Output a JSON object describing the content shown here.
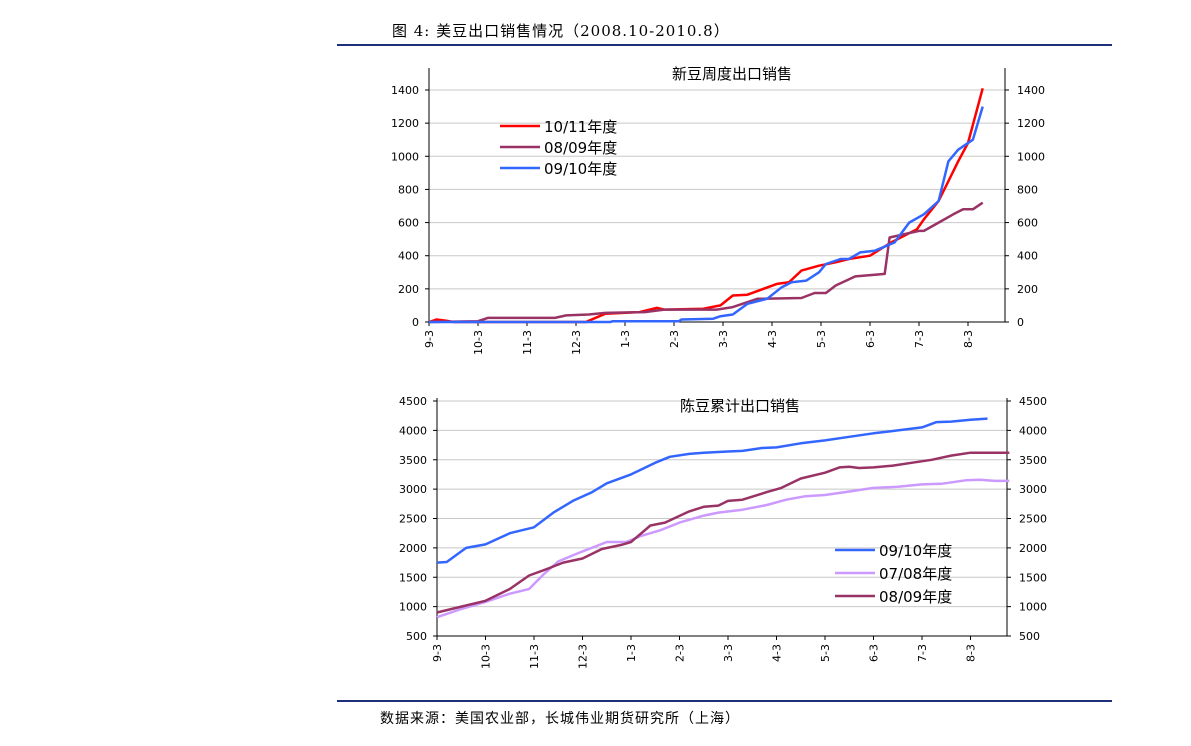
{
  "figure_title": "图 4: 美豆出口销售情况（2008.10-2010.8）",
  "source": "数据来源：美国农业部，长城伟业期货研究所（上海）",
  "chart_data": [
    {
      "type": "line",
      "title": "新豆周度出口销售",
      "categories": [
        "9-3",
        "10-3",
        "11-3",
        "12-3",
        "1-3",
        "2-3",
        "3-3",
        "4-3",
        "5-3",
        "6-3",
        "7-3",
        "8-3"
      ],
      "x_note": "x = position along category axis (category index, fractional)",
      "ylim": [
        0,
        1400
      ],
      "yticks": [
        0,
        200,
        400,
        600,
        800,
        1000,
        1200,
        1400
      ],
      "secondary_y_mirrored": true,
      "grid": true,
      "legend": "top-left",
      "series": [
        {
          "name": "10/11年度",
          "color": "#ff0000",
          "points": [
            [
              0,
              0
            ],
            [
              0.15,
              15
            ],
            [
              0.35,
              8
            ],
            [
              0.5,
              0
            ],
            [
              3.2,
              0
            ],
            [
              3.6,
              50
            ],
            [
              4.3,
              60
            ],
            [
              4.65,
              85
            ],
            [
              4.8,
              75
            ],
            [
              5.6,
              80
            ],
            [
              5.95,
              100
            ],
            [
              6.2,
              160
            ],
            [
              6.5,
              165
            ],
            [
              7.1,
              230
            ],
            [
              7.35,
              240
            ],
            [
              7.6,
              310
            ],
            [
              7.96,
              340
            ],
            [
              8.3,
              360
            ],
            [
              8.57,
              380
            ],
            [
              9,
              400
            ],
            [
              9.43,
              480
            ],
            [
              9.96,
              560
            ],
            [
              10.1,
              620
            ],
            [
              10.4,
              730
            ],
            [
              10.8,
              970
            ],
            [
              11,
              1080
            ],
            [
              11.3,
              1410
            ]
          ]
        },
        {
          "name": "08/09年度",
          "color": "#993366",
          "points": [
            [
              0,
              0
            ],
            [
              1,
              5
            ],
            [
              1.2,
              25
            ],
            [
              2.57,
              25
            ],
            [
              2.8,
              40
            ],
            [
              3.26,
              45
            ],
            [
              3.6,
              55
            ],
            [
              4.4,
              60
            ],
            [
              4.8,
              75
            ],
            [
              5.87,
              75
            ],
            [
              6.2,
              90
            ],
            [
              6.7,
              140
            ],
            [
              7.6,
              145
            ],
            [
              7.87,
              175
            ],
            [
              8.1,
              175
            ],
            [
              8.3,
              220
            ],
            [
              8.7,
              275
            ],
            [
              9.1,
              285
            ],
            [
              9.3,
              290
            ],
            [
              9.4,
              510
            ],
            [
              10,
              550
            ],
            [
              10.1,
              550
            ],
            [
              10.4,
              600
            ],
            [
              10.7,
              650
            ],
            [
              10.9,
              680
            ],
            [
              11.1,
              680
            ],
            [
              11.3,
              720
            ]
          ]
        },
        {
          "name": "09/10年度",
          "color": "#3366ff",
          "points": [
            [
              0,
              0
            ],
            [
              3.7,
              0
            ],
            [
              3.75,
              5
            ],
            [
              5.1,
              5
            ],
            [
              5.15,
              15
            ],
            [
              5.8,
              20
            ],
            [
              5.95,
              35
            ],
            [
              6.2,
              45
            ],
            [
              6.5,
              110
            ],
            [
              6.9,
              140
            ],
            [
              7.2,
              210
            ],
            [
              7.4,
              240
            ],
            [
              7.7,
              250
            ],
            [
              7.96,
              300
            ],
            [
              8.1,
              350
            ],
            [
              8.4,
              380
            ],
            [
              8.57,
              380
            ],
            [
              8.8,
              420
            ],
            [
              9.1,
              430
            ],
            [
              9.5,
              480
            ],
            [
              9.8,
              600
            ],
            [
              10.1,
              650
            ],
            [
              10.4,
              730
            ],
            [
              10.6,
              970
            ],
            [
              10.8,
              1040
            ],
            [
              11.1,
              1100
            ],
            [
              11.3,
              1300
            ]
          ]
        }
      ]
    },
    {
      "type": "line",
      "title": "陈豆累计出口销售",
      "categories": [
        "9-3",
        "10-3",
        "11-3",
        "12-3",
        "1-3",
        "2-3",
        "3-3",
        "4-3",
        "5-3",
        "6-3",
        "7-3",
        "8-3"
      ],
      "x_note": "x = position along category axis (category index, fractional)",
      "ylim": [
        500,
        4500
      ],
      "yticks": [
        500,
        1000,
        1500,
        2000,
        2500,
        3000,
        3500,
        4000,
        4500
      ],
      "secondary_y_mirrored": true,
      "grid": true,
      "legend": "bottom-right",
      "series": [
        {
          "name": "09/10年度",
          "color": "#3366ff",
          "points": [
            [
              0,
              1750
            ],
            [
              0.2,
              1760
            ],
            [
              0.6,
              2000
            ],
            [
              1,
              2060
            ],
            [
              1.5,
              2250
            ],
            [
              2,
              2350
            ],
            [
              2.4,
              2600
            ],
            [
              2.8,
              2800
            ],
            [
              3.2,
              2950
            ],
            [
              3.5,
              3100
            ],
            [
              4,
              3250
            ],
            [
              4.5,
              3450
            ],
            [
              4.8,
              3550
            ],
            [
              5.2,
              3600
            ],
            [
              5.5,
              3620
            ],
            [
              6,
              3640
            ],
            [
              6.3,
              3650
            ],
            [
              6.7,
              3700
            ],
            [
              7,
              3710
            ],
            [
              7.5,
              3780
            ],
            [
              8,
              3830
            ],
            [
              8.5,
              3890
            ],
            [
              9,
              3950
            ],
            [
              9.5,
              4000
            ],
            [
              10,
              4050
            ],
            [
              10.3,
              4140
            ],
            [
              10.6,
              4150
            ],
            [
              11,
              4180
            ],
            [
              11.35,
              4200
            ]
          ]
        },
        {
          "name": "07/08年度",
          "color": "#cc99ff",
          "points": [
            [
              0,
              820
            ],
            [
              0.5,
              960
            ],
            [
              1,
              1080
            ],
            [
              1.5,
              1220
            ],
            [
              1.9,
              1300
            ],
            [
              2.2,
              1550
            ],
            [
              2.5,
              1770
            ],
            [
              3,
              1940
            ],
            [
              3.5,
              2100
            ],
            [
              3.9,
              2100
            ],
            [
              4.2,
              2200
            ],
            [
              4.6,
              2300
            ],
            [
              5,
              2430
            ],
            [
              5.5,
              2550
            ],
            [
              5.8,
              2600
            ],
            [
              6.3,
              2650
            ],
            [
              6.8,
              2730
            ],
            [
              7.2,
              2820
            ],
            [
              7.6,
              2880
            ],
            [
              8,
              2900
            ],
            [
              8.5,
              2960
            ],
            [
              9,
              3020
            ],
            [
              9.5,
              3040
            ],
            [
              10,
              3080
            ],
            [
              10.4,
              3090
            ],
            [
              10.9,
              3150
            ],
            [
              11.2,
              3160
            ],
            [
              11.5,
              3140
            ],
            [
              11.8,
              3140
            ]
          ]
        },
        {
          "name": "08/09年度",
          "color": "#993366",
          "points": [
            [
              0,
              900
            ],
            [
              0.5,
              1000
            ],
            [
              1,
              1100
            ],
            [
              1.5,
              1300
            ],
            [
              1.9,
              1530
            ],
            [
              2.3,
              1650
            ],
            [
              2.6,
              1750
            ],
            [
              3,
              1820
            ],
            [
              3.4,
              1980
            ],
            [
              3.8,
              2050
            ],
            [
              4,
              2100
            ],
            [
              4.4,
              2380
            ],
            [
              4.7,
              2430
            ],
            [
              5.2,
              2620
            ],
            [
              5.5,
              2700
            ],
            [
              5.8,
              2720
            ],
            [
              6,
              2800
            ],
            [
              6.3,
              2820
            ],
            [
              6.8,
              2950
            ],
            [
              7.1,
              3020
            ],
            [
              7.5,
              3180
            ],
            [
              8,
              3280
            ],
            [
              8.3,
              3370
            ],
            [
              8.5,
              3380
            ],
            [
              8.7,
              3360
            ],
            [
              9,
              3370
            ],
            [
              9.4,
              3400
            ],
            [
              9.8,
              3450
            ],
            [
              10.2,
              3500
            ],
            [
              10.6,
              3570
            ],
            [
              11,
              3620
            ],
            [
              11.8,
              3620
            ]
          ]
        }
      ]
    }
  ]
}
